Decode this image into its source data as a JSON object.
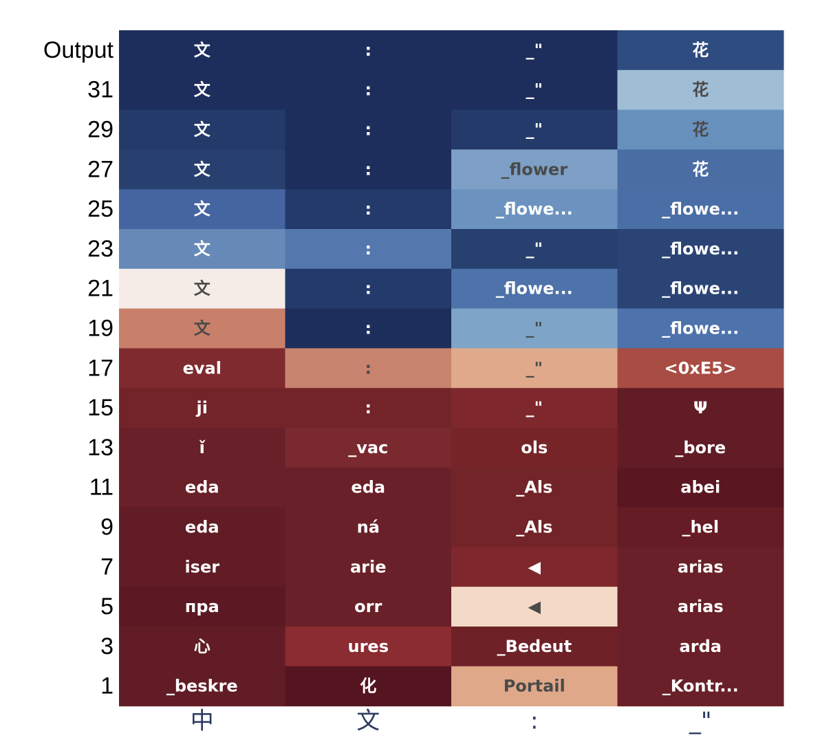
{
  "chart_data": {
    "type": "heatmap",
    "row_labels": [
      "Output",
      "31",
      "29",
      "27",
      "25",
      "23",
      "21",
      "19",
      "17",
      "15",
      "13",
      "11",
      "9",
      "7",
      "5",
      "3",
      "1"
    ],
    "col_labels": [
      "中",
      "文",
      ":",
      "_\""
    ],
    "tokens": [
      [
        "文",
        ":",
        "_\"",
        "花"
      ],
      [
        "文",
        ":",
        "_\"",
        "花"
      ],
      [
        "文",
        ":",
        "_\"",
        "花"
      ],
      [
        "文",
        ":",
        "_flower",
        "花"
      ],
      [
        "文",
        ":",
        "_flowe...",
        "_flowe..."
      ],
      [
        "文",
        ":",
        "_\"",
        "_flowe..."
      ],
      [
        "文",
        ":",
        "_flowe...",
        "_flowe..."
      ],
      [
        "文",
        ":",
        "_\"",
        "_flowe..."
      ],
      [
        "eval",
        ":",
        "_\"",
        "<0xE5>"
      ],
      [
        "ji",
        ":",
        "_\"",
        "Ψ"
      ],
      [
        "ǐ",
        "_vac",
        "ols",
        "_bore"
      ],
      [
        "eda",
        "eda",
        "_Als",
        "abei"
      ],
      [
        "eda",
        "ná",
        "_Als",
        "_hel"
      ],
      [
        "iser",
        "arie",
        "◀",
        "arias"
      ],
      [
        "пpa",
        "orr",
        "◀",
        "arias"
      ],
      [
        "心",
        "ures",
        "_Bedeut",
        "arda"
      ],
      [
        "_beskre",
        "化",
        "Portail",
        "_Kontr..."
      ]
    ],
    "colors": [
      [
        "#1e2e5c",
        "#1e2e5c",
        "#1e2e5c",
        "#2f4c80"
      ],
      [
        "#1e2e5c",
        "#1e2e5c",
        "#1e2e5c",
        "#a0bdd6"
      ],
      [
        "#233a6a",
        "#1e2e5c",
        "#233a6a",
        "#6890bc"
      ],
      [
        "#27406f",
        "#1e2e5c",
        "#7ea0c6",
        "#4a6da3"
      ],
      [
        "#4565a0",
        "#233a6a",
        "#6c93c0",
        "#4a6ea6"
      ],
      [
        "#6689b8",
        "#5478ad",
        "#27406f",
        "#2a4475"
      ],
      [
        "#f5ece8",
        "#233a6a",
        "#4e72aa",
        "#2a4475"
      ],
      [
        "#c8806a",
        "#1e2e5c",
        "#7ea5c8",
        "#4d72ac"
      ],
      [
        "#7e2a2e",
        "#c8846e",
        "#e0a98c",
        "#a84c44"
      ],
      [
        "#722429",
        "#722429",
        "#7e282d",
        "#621c25"
      ],
      [
        "#6a2028",
        "#7a2a2f",
        "#762428",
        "#621c25"
      ],
      [
        "#6a2028",
        "#6a2028",
        "#722429",
        "#5a1621"
      ],
      [
        "#621c25",
        "#6a2028",
        "#722429",
        "#661c25"
      ],
      [
        "#621c25",
        "#6a2028",
        "#7e282d",
        "#6a2028"
      ],
      [
        "#5c1923",
        "#6a2028",
        "#f4d9c7",
        "#6a2028"
      ],
      [
        "#621c25",
        "#8a2c31",
        "#6e2228",
        "#6a2028"
      ],
      [
        "#621c25",
        "#541520",
        "#dfa889",
        "#6a2028"
      ]
    ],
    "text_colors": [
      [
        "#ffffff",
        "#ffffff",
        "#ffffff",
        "#ffffff"
      ],
      [
        "#ffffff",
        "#ffffff",
        "#ffffff",
        "#4a4a4a"
      ],
      [
        "#ffffff",
        "#ffffff",
        "#ffffff",
        "#4a4a4a"
      ],
      [
        "#ffffff",
        "#ffffff",
        "#4a4a4a",
        "#ffffff"
      ],
      [
        "#ffffff",
        "#ffffff",
        "#ffffff",
        "#ffffff"
      ],
      [
        "#ffffff",
        "#ffffff",
        "#ffffff",
        "#ffffff"
      ],
      [
        "#4a4a4a",
        "#ffffff",
        "#ffffff",
        "#ffffff"
      ],
      [
        "#4a4a4a",
        "#ffffff",
        "#4a4a4a",
        "#ffffff"
      ],
      [
        "#ffffff",
        "#4a4a4a",
        "#4a4a4a",
        "#ffffff"
      ],
      [
        "#ffffff",
        "#ffffff",
        "#ffffff",
        "#ffffff"
      ],
      [
        "#ffffff",
        "#ffffff",
        "#ffffff",
        "#ffffff"
      ],
      [
        "#ffffff",
        "#ffffff",
        "#ffffff",
        "#ffffff"
      ],
      [
        "#ffffff",
        "#ffffff",
        "#ffffff",
        "#ffffff"
      ],
      [
        "#ffffff",
        "#ffffff",
        "#ffffff",
        "#ffffff"
      ],
      [
        "#ffffff",
        "#ffffff",
        "#4a4a4a",
        "#ffffff"
      ],
      [
        "#ffffff",
        "#ffffff",
        "#ffffff",
        "#ffffff"
      ],
      [
        "#ffffff",
        "#ffffff",
        "#4a4a4a",
        "#ffffff"
      ]
    ]
  }
}
